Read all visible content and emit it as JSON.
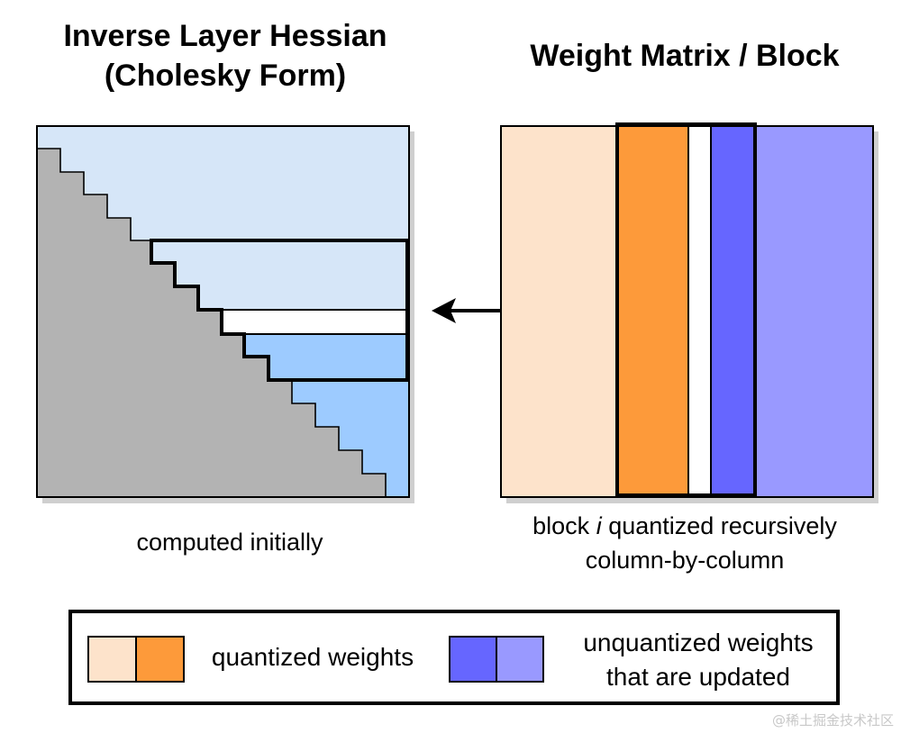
{
  "titles": {
    "left_line1": "Inverse Layer Hessian",
    "left_line2": "(Cholesky Form)",
    "right": "Weight Matrix / Block"
  },
  "captions": {
    "left": "computed initially",
    "right_prefix": "block ",
    "right_italic": "i",
    "right_suffix": " quantized recursively",
    "right_line2": "column-by-column"
  },
  "legend": {
    "quantized_label": "quantized weights",
    "unquantized_line1": "unquantized weights",
    "unquantized_line2": "that are updated"
  },
  "colors": {
    "light_blue": "#d6e6f8",
    "mid_blue": "#9dcbff",
    "gray": "#b3b3b3",
    "peach": "#fde3cb",
    "orange": "#fd9a3a",
    "blue_purple": "#6666ff",
    "lavender": "#9999ff"
  },
  "watermark": "@稀土掘金技术社区"
}
